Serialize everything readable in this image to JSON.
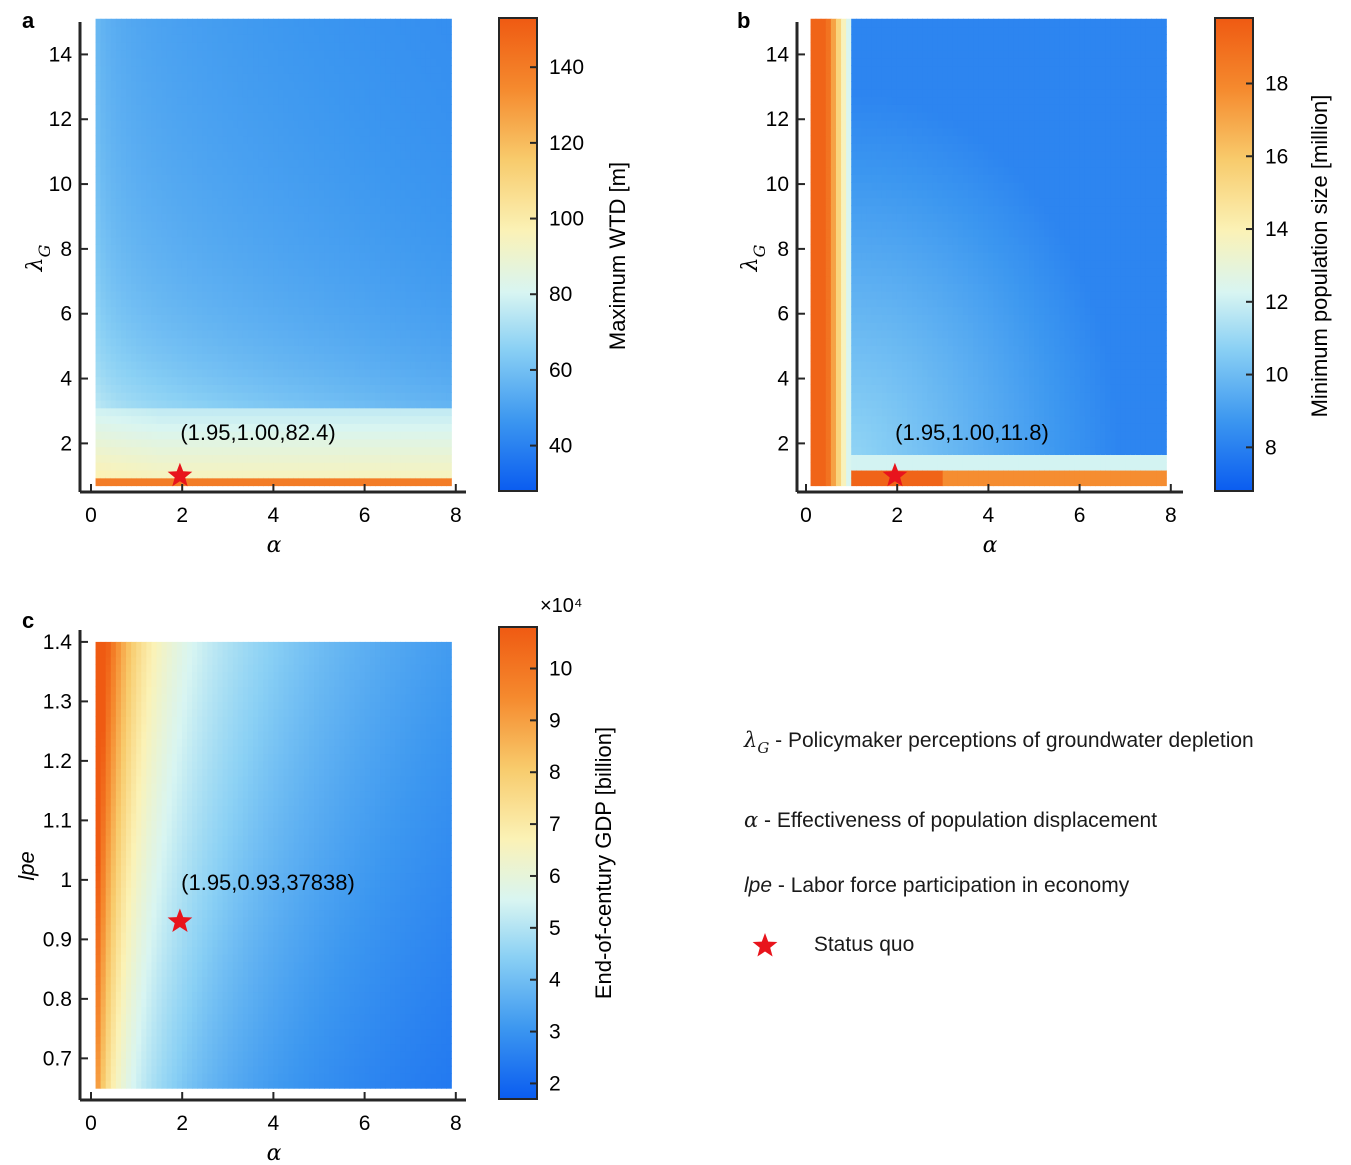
{
  "panels": [
    {
      "label": "a",
      "ylabel_sym": "λ",
      "ylabel_sub": "G",
      "xlabel": "α",
      "xticks": [
        "0",
        "2",
        "4",
        "6",
        "8"
      ],
      "yticks": [
        "2",
        "4",
        "6",
        "8",
        "10",
        "12",
        "14"
      ],
      "colorbar_label": "Maximum WTD [m]",
      "colorbar_ticks": [
        "40",
        "60",
        "80",
        "100",
        "120",
        "140"
      ],
      "colorbar_exp": "",
      "annotation": "(1.95,1.00,82.4)"
    },
    {
      "label": "b",
      "ylabel_sym": "λ",
      "ylabel_sub": "G",
      "xlabel": "α",
      "xticks": [
        "0",
        "2",
        "4",
        "6",
        "8"
      ],
      "yticks": [
        "2",
        "4",
        "6",
        "8",
        "10",
        "12",
        "14"
      ],
      "colorbar_label": "Minimum population size [million]",
      "colorbar_ticks": [
        "8",
        "10",
        "12",
        "14",
        "16",
        "18"
      ],
      "colorbar_exp": "",
      "annotation": "(1.95,1.00,11.8)"
    },
    {
      "label": "c",
      "ylabel_sym": "lpe",
      "ylabel_sub": "",
      "xlabel": "α",
      "xticks": [
        "0",
        "2",
        "4",
        "6",
        "8"
      ],
      "yticks": [
        "0.7",
        "0.8",
        "0.9",
        "1",
        "1.1",
        "1.2",
        "1.3",
        "1.4"
      ],
      "colorbar_label": "End-of-century GDP [billion]",
      "colorbar_ticks": [
        "2",
        "3",
        "4",
        "5",
        "6",
        "7",
        "8",
        "9",
        "10"
      ],
      "colorbar_exp": "×10⁴",
      "annotation": "(1.95,0.93,37838)"
    }
  ],
  "legend": {
    "lambda_sym": "λ",
    "lambda_sub": "G",
    "lambda_text": " - Policymaker perceptions of groundwater depletion",
    "alpha_sym": "α",
    "alpha_text": " - Effectiveness of population displacement",
    "lpe_sym": "lpe",
    "lpe_text": " - Labor force participation in economy",
    "star_text": "Status quo"
  },
  "colors": {
    "colormap": [
      "#0a5cf0",
      "#3c97f0",
      "#8ad0f4",
      "#d8f5f2",
      "#fbf2b6",
      "#f8cb6c",
      "#f58a2e",
      "#ef5a12"
    ],
    "star": "#e8141c",
    "axis": "#262626"
  },
  "chart_data": [
    {
      "type": "heatmap",
      "panel": "a",
      "x_name": "α",
      "y_name": "λG",
      "xlim": [
        0,
        8
      ],
      "ylim": [
        0.5,
        15
      ],
      "x_range": [
        0.1,
        7.9
      ],
      "y_range": [
        0.7,
        15.1
      ],
      "value_label": "Maximum WTD [m]",
      "clim": [
        28,
        153
      ],
      "point": {
        "x": 1.95,
        "y": 1.0,
        "value": 82.4
      }
    },
    {
      "type": "heatmap",
      "panel": "b",
      "x_name": "α",
      "y_name": "λG",
      "xlim": [
        0,
        8
      ],
      "ylim": [
        0.5,
        15
      ],
      "x_range": [
        0.1,
        7.9
      ],
      "y_range": [
        0.7,
        15.1
      ],
      "value_label": "Minimum population size [million]",
      "clim": [
        6.8,
        19.8
      ],
      "point": {
        "x": 1.95,
        "y": 1.0,
        "value": 11.8
      }
    },
    {
      "type": "heatmap",
      "panel": "c",
      "x_name": "α",
      "y_name": "lpe",
      "xlim": [
        0,
        8
      ],
      "ylim": [
        0.63,
        1.42
      ],
      "x_range": [
        0.1,
        7.9
      ],
      "y_range": [
        0.65,
        1.4
      ],
      "value_label": "End-of-century GDP [billion]",
      "clim": [
        17000,
        108000
      ],
      "point": {
        "x": 1.95,
        "y": 0.93,
        "value": 37838
      }
    }
  ]
}
